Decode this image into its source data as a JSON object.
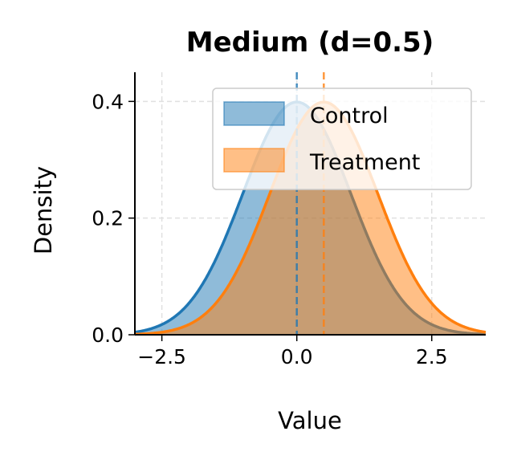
{
  "chart_data": {
    "type": "area",
    "title": "Medium (d=0.5)",
    "xlabel": "Value",
    "ylabel": "Density",
    "xlim": [
      -3,
      3.5
    ],
    "ylim": [
      0,
      0.45
    ],
    "xticks": [
      -2.5,
      0.0,
      2.5
    ],
    "xtick_labels": [
      "−2.5",
      "0.0",
      "2.5"
    ],
    "yticks": [
      0.0,
      0.2,
      0.4
    ],
    "ytick_labels": [
      "0.0",
      "0.2",
      "0.4"
    ],
    "grid": true,
    "legend_position": "top-right",
    "series": [
      {
        "name": "Control",
        "distribution": "normal",
        "mean": 0.0,
        "sd": 1.0,
        "color": "#1f77b4"
      },
      {
        "name": "Treatment",
        "distribution": "normal",
        "mean": 0.5,
        "sd": 1.0,
        "color": "#ff7f0e"
      }
    ],
    "mean_lines": [
      0.0,
      0.5
    ]
  }
}
